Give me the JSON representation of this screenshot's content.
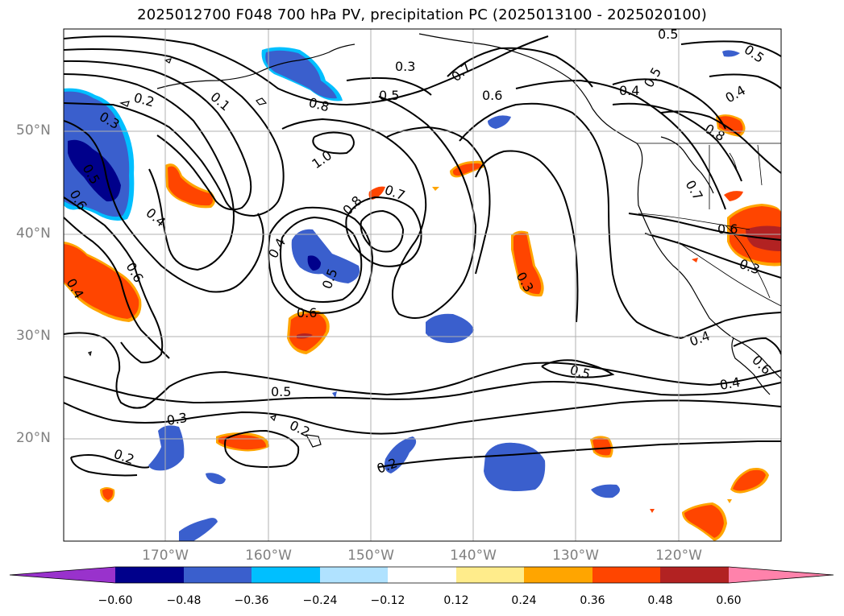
{
  "title": "2025012700 F048 700 hPa PV, precipitation PC (2025013100 - 2025020100)",
  "lat_labels": [
    "50°N",
    "40°N",
    "30°N",
    "20°N"
  ],
  "lon_labels": [
    "170°W",
    "160°W",
    "150°W",
    "140°W",
    "130°W",
    "120°W"
  ],
  "colorbar": {
    "ticks": [
      "−0.60",
      "−0.48",
      "−0.36",
      "−0.24",
      "−0.12",
      "0.12",
      "0.24",
      "0.36",
      "0.48",
      "0.60"
    ],
    "colors": [
      "#9932cc",
      "#00008b",
      "#3a5fcd",
      "#00bfff",
      "#b0e2ff",
      "#ffffff",
      "#ffec8b",
      "#ffa500",
      "#ff4500",
      "#b22222",
      "#ff82ab"
    ]
  },
  "contour_labels": [
    "0.5",
    "0.5",
    "0.3",
    "0.7",
    "0.5",
    "0.6",
    "0.4",
    "0.5",
    "0.4",
    "0.8",
    "0.2",
    "0.1",
    "0.3",
    "0.5",
    "0.6",
    "0.4",
    "1.0",
    "0.8",
    "0.7",
    "0.4",
    "0.5",
    "0.6",
    "0.4",
    "0.7",
    "0.6",
    "0.3",
    "0.3",
    "0.6",
    "0.4",
    "0.5",
    "0.6",
    "0.5",
    "0.4",
    "0.3",
    "0.2",
    "0.2",
    "0.2",
    "0.8"
  ]
}
